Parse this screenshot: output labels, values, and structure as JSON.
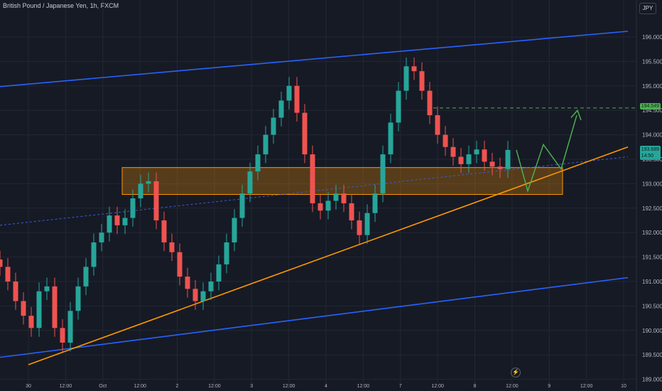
{
  "header": {
    "symbol_title": "British Pound / Japanese Yen, 1h, FXCM"
  },
  "currency_badge": "JPY",
  "price_tags": {
    "level_label": "194.549",
    "last_price": "193.689",
    "countdown": "14:50"
  },
  "icons": {
    "lightning": "lightning-icon"
  },
  "chart_data": {
    "type": "candlestick",
    "y_ticks": [
      "196.000",
      "195.500",
      "195.000",
      "194.500",
      "194.000",
      "193.500",
      "193.000",
      "192.500",
      "192.000",
      "191.500",
      "191.000",
      "190.500",
      "190.000",
      "189.500",
      "189.000"
    ],
    "ylim": [
      189.0,
      196.4
    ],
    "x_ticks": [
      "30",
      "12:00",
      "Oct",
      "12:00",
      "2",
      "12:00",
      "3",
      "12:00",
      "4",
      "12:00",
      "7",
      "12:00",
      "8",
      "12:00",
      "9",
      "12:00",
      "10"
    ],
    "zone": {
      "from": 192.78,
      "to": 193.33
    },
    "level": 194.549,
    "last_price": 193.689,
    "series_close": [
      191.3,
      191.0,
      190.6,
      190.3,
      190.05,
      190.8,
      190.9,
      190.05,
      189.75,
      190.4,
      190.9,
      191.3,
      191.8,
      192.0,
      192.35,
      192.15,
      192.3,
      192.7,
      193.0,
      193.05,
      192.25,
      191.8,
      191.6,
      191.1,
      190.85,
      190.6,
      190.8,
      191.0,
      191.35,
      191.8,
      192.3,
      192.8,
      193.25,
      193.6,
      194.0,
      194.35,
      194.7,
      195.0,
      194.45,
      193.6,
      192.6,
      192.45,
      192.65,
      192.8,
      192.6,
      192.25,
      191.95,
      192.4,
      192.8,
      193.6,
      194.25,
      194.9,
      195.4,
      195.3,
      194.9,
      194.4,
      194.0,
      193.75,
      193.55,
      193.4,
      193.6,
      193.7,
      193.45,
      193.35,
      193.3,
      193.69
    ],
    "colors": {
      "up": "#26a69a",
      "down": "#ef5350",
      "channel": "#2962ff",
      "trend": "#ff9800",
      "projection": "#4caf50",
      "background": "#161a25",
      "grid": "#232734"
    }
  }
}
